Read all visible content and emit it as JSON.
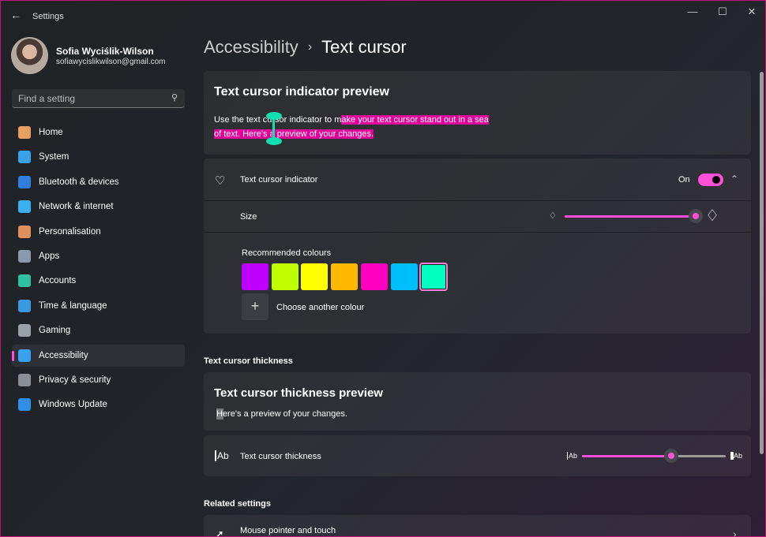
{
  "window": {
    "title": "Settings",
    "back_icon": "arrow-left-icon"
  },
  "profile": {
    "name": "Sofia Wyciślik-Wilson",
    "email": "sofiawycislikwilson@gmail.com"
  },
  "search": {
    "placeholder": "Find a setting"
  },
  "nav": [
    {
      "label": "Home",
      "icon": "home-icon",
      "color": "#e8a060"
    },
    {
      "label": "System",
      "icon": "monitor-icon",
      "color": "#3aa0e8"
    },
    {
      "label": "Bluetooth & devices",
      "icon": "bluetooth-icon",
      "color": "#2f7fe0"
    },
    {
      "label": "Network & internet",
      "icon": "wifi-icon",
      "color": "#3ab0f0"
    },
    {
      "label": "Personalisation",
      "icon": "brush-icon",
      "color": "#e0905a"
    },
    {
      "label": "Apps",
      "icon": "apps-icon",
      "color": "#8a9aaa"
    },
    {
      "label": "Accounts",
      "icon": "person-icon",
      "color": "#2fc0a0"
    },
    {
      "label": "Time & language",
      "icon": "globe-clock-icon",
      "color": "#3a9ae0"
    },
    {
      "label": "Gaming",
      "icon": "gamepad-icon",
      "color": "#9aa0a8"
    },
    {
      "label": "Accessibility",
      "icon": "accessibility-icon",
      "color": "#3aa0f0",
      "selected": true
    },
    {
      "label": "Privacy & security",
      "icon": "shield-icon",
      "color": "#8a8f96"
    },
    {
      "label": "Windows Update",
      "icon": "update-icon",
      "color": "#2f8fe8"
    }
  ],
  "breadcrumb": {
    "parent": "Accessibility",
    "current": "Text cursor"
  },
  "preview": {
    "title": "Text cursor indicator preview",
    "text_plain": "Use the text cursor indicator to m",
    "text_highlight_1": "ake your text cursor stand out in a sea",
    "text_highlight_2": "of text. Here's a preview of your changes."
  },
  "indicator": {
    "label": "Text cursor indicator",
    "state": "On",
    "on": true,
    "size_label": "Size",
    "size_value": 1.0,
    "colours_label": "Recommended colours",
    "colours": [
      "#c000ff",
      "#bfff00",
      "#ffff00",
      "#ffb900",
      "#ff00c0",
      "#00bfff",
      "#00ffc0"
    ],
    "selected_colour": "#00ffc0",
    "choose_label": "Choose another colour"
  },
  "thickness": {
    "section": "Text cursor thickness",
    "preview_title": "Text cursor thickness preview",
    "preview_text": "Here's a preview of your changes.",
    "label": "Text cursor thickness",
    "icon_text": "Ab",
    "value": 0.62
  },
  "related": {
    "section": "Related settings",
    "items": [
      {
        "label": "Mouse pointer and touch"
      }
    ]
  },
  "accent": "#ff4fd8"
}
